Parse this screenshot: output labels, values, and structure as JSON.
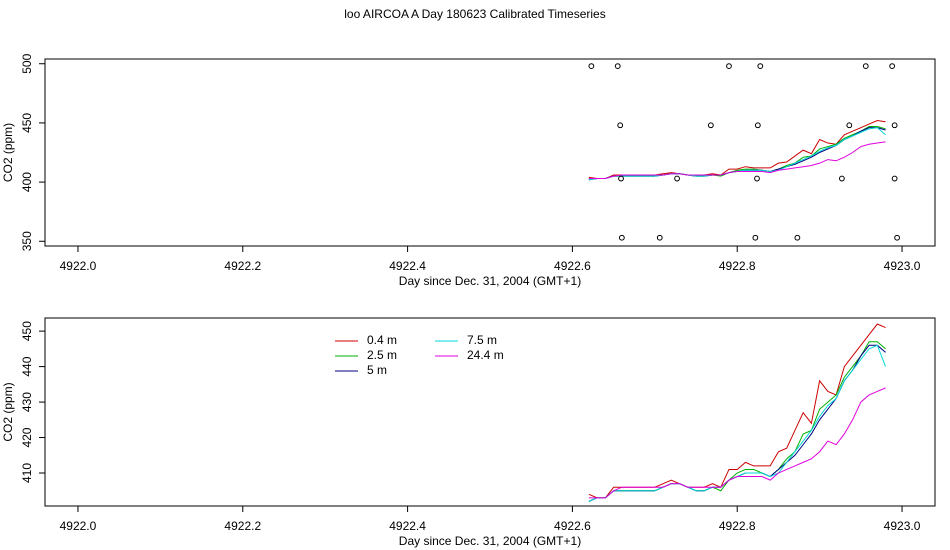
{
  "chart_data": [
    {
      "type": "line",
      "title": "loo AIRCOA A  Day 180623  Calibrated Timeseries",
      "xlabel": "Day since Dec. 31, 2004 (GMT+1)",
      "ylabel": "CO2 (ppm)",
      "xlim": [
        4921.96,
        4923.04
      ],
      "ylim": [
        346,
        504
      ],
      "xticks": [
        {
          "value": 4922.0,
          "label": "4922.0"
        },
        {
          "value": 4922.2,
          "label": "4922.2"
        },
        {
          "value": 4922.4,
          "label": "4922.4"
        },
        {
          "value": 4922.6,
          "label": "4922.6"
        },
        {
          "value": 4922.8,
          "label": "4922.8"
        },
        {
          "value": 4923.0,
          "label": "4923.0"
        }
      ],
      "yticks": [
        350,
        400,
        450,
        500
      ],
      "x": [
        4922.62,
        4922.63,
        4922.64,
        4922.65,
        4922.66,
        4922.67,
        4922.68,
        4922.69,
        4922.7,
        4922.71,
        4922.72,
        4922.73,
        4922.74,
        4922.75,
        4922.76,
        4922.77,
        4922.78,
        4922.79,
        4922.8,
        4922.81,
        4922.82,
        4922.83,
        4922.84,
        4922.85,
        4922.86,
        4922.87,
        4922.88,
        4922.89,
        4922.9,
        4922.91,
        4922.92,
        4922.93,
        4922.94,
        4922.95,
        4922.96,
        4922.97,
        4922.98
      ],
      "series": [
        {
          "name": "0.4 m",
          "color": "#cc0000",
          "values": [
            404,
            403,
            403,
            406,
            406,
            406,
            406,
            406,
            406,
            407,
            408,
            407,
            406,
            406,
            406,
            407,
            406,
            411,
            411,
            413,
            412,
            412,
            412,
            416,
            417,
            422,
            427,
            424,
            436,
            433,
            432,
            440,
            443,
            446,
            449,
            452,
            451
          ]
        },
        {
          "name": "2.5 m",
          "color": "#00b000",
          "values": [
            402,
            403,
            403,
            405,
            405,
            405,
            405,
            405,
            405,
            406,
            407,
            407,
            406,
            405,
            405,
            406,
            405,
            408,
            410,
            411,
            411,
            410,
            409,
            411,
            414,
            416,
            421,
            422,
            428,
            430,
            432,
            437,
            440,
            443,
            447,
            447,
            445
          ]
        },
        {
          "name": "5 m",
          "color": "#000080",
          "values": [
            402,
            403,
            403,
            405,
            405,
            405,
            405,
            405,
            405,
            406,
            407,
            407,
            406,
            405,
            405,
            406,
            406,
            408,
            409,
            410,
            410,
            410,
            409,
            411,
            413,
            415,
            418,
            421,
            425,
            428,
            431,
            436,
            439,
            443,
            446,
            446,
            444
          ]
        },
        {
          "name": "7.5 m",
          "color": "#00d8d8",
          "values": [
            402,
            403,
            403,
            405,
            405,
            405,
            405,
            405,
            405,
            406,
            407,
            407,
            406,
            405,
            405,
            406,
            406,
            408,
            409,
            410,
            410,
            410,
            409,
            410,
            413,
            416,
            419,
            422,
            426,
            429,
            431,
            436,
            439,
            442,
            445,
            446,
            440
          ]
        },
        {
          "name": "24.4 m",
          "color": "#e000e0",
          "values": [
            403,
            403,
            403,
            405,
            406,
            406,
            406,
            406,
            406,
            406,
            407,
            407,
            406,
            406,
            406,
            406,
            406,
            408,
            409,
            409,
            409,
            409,
            408,
            410,
            411,
            412,
            413,
            414,
            416,
            419,
            418,
            421,
            425,
            430,
            432,
            433,
            434
          ]
        }
      ],
      "markers": {
        "x": [
          4922.623,
          4922.655,
          4922.79,
          4922.828,
          4922.956,
          4922.988,
          4922.658,
          4922.768,
          4922.825,
          4922.936,
          4922.991,
          4922.659,
          4922.727,
          4922.824,
          4922.927,
          4922.991,
          4922.66,
          4922.706,
          4922.822,
          4922.873,
          4922.994
        ],
        "y": [
          498,
          498,
          498,
          498,
          498,
          498,
          448,
          448,
          448,
          448,
          448,
          403,
          403,
          403,
          403,
          403,
          353,
          353,
          353,
          353,
          353
        ]
      }
    },
    {
      "type": "line",
      "xlabel": "Day since Dec. 31, 2004 (GMT+1)",
      "ylabel": "CO2 (ppm)",
      "legend": true,
      "xlim": [
        4921.96,
        4923.04
      ],
      "ylim": [
        400.7,
        453.7
      ],
      "xticks": [
        {
          "value": 4922.0,
          "label": "4922.0"
        },
        {
          "value": 4922.2,
          "label": "4922.2"
        },
        {
          "value": 4922.4,
          "label": "4922.4"
        },
        {
          "value": 4922.6,
          "label": "4922.6"
        },
        {
          "value": 4922.8,
          "label": "4922.8"
        },
        {
          "value": 4923.0,
          "label": "4923.0"
        }
      ],
      "yticks": [
        410,
        420,
        430,
        440,
        450
      ],
      "x": [
        4922.62,
        4922.63,
        4922.64,
        4922.65,
        4922.66,
        4922.67,
        4922.68,
        4922.69,
        4922.7,
        4922.71,
        4922.72,
        4922.73,
        4922.74,
        4922.75,
        4922.76,
        4922.77,
        4922.78,
        4922.79,
        4922.8,
        4922.81,
        4922.82,
        4922.83,
        4922.84,
        4922.85,
        4922.86,
        4922.87,
        4922.88,
        4922.89,
        4922.9,
        4922.91,
        4922.92,
        4922.93,
        4922.94,
        4922.95,
        4922.96,
        4922.97,
        4922.98
      ],
      "series": [
        {
          "name": "0.4 m",
          "color": "#cc0000",
          "values": [
            404,
            403,
            403,
            406,
            406,
            406,
            406,
            406,
            406,
            407,
            408,
            407,
            406,
            406,
            406,
            407,
            406,
            411,
            411,
            413,
            412,
            412,
            412,
            416,
            417,
            422,
            427,
            424,
            436,
            433,
            432,
            440,
            443,
            446,
            449,
            452,
            451
          ]
        },
        {
          "name": "2.5 m",
          "color": "#00b000",
          "values": [
            402,
            403,
            403,
            405,
            405,
            405,
            405,
            405,
            405,
            406,
            407,
            407,
            406,
            405,
            405,
            406,
            405,
            408,
            410,
            411,
            411,
            410,
            409,
            411,
            414,
            416,
            421,
            422,
            428,
            430,
            432,
            437,
            440,
            443,
            447,
            447,
            445
          ]
        },
        {
          "name": "5 m",
          "color": "#000080",
          "values": [
            402,
            403,
            403,
            405,
            405,
            405,
            405,
            405,
            405,
            406,
            407,
            407,
            406,
            405,
            405,
            406,
            406,
            408,
            409,
            410,
            410,
            410,
            409,
            411,
            413,
            415,
            418,
            421,
            425,
            428,
            431,
            436,
            439,
            443,
            446,
            446,
            444
          ]
        },
        {
          "name": "7.5 m",
          "color": "#00d8d8",
          "values": [
            402,
            403,
            403,
            405,
            405,
            405,
            405,
            405,
            405,
            406,
            407,
            407,
            406,
            405,
            405,
            406,
            406,
            408,
            409,
            410,
            410,
            410,
            409,
            410,
            413,
            416,
            419,
            422,
            426,
            429,
            431,
            436,
            439,
            442,
            445,
            446,
            440
          ]
        },
        {
          "name": "24.4 m",
          "color": "#e000e0",
          "values": [
            403,
            403,
            403,
            405,
            406,
            406,
            406,
            406,
            406,
            406,
            407,
            407,
            406,
            406,
            406,
            406,
            406,
            408,
            409,
            409,
            409,
            409,
            408,
            410,
            411,
            412,
            413,
            414,
            416,
            419,
            418,
            421,
            425,
            430,
            432,
            433,
            434
          ]
        }
      ]
    }
  ]
}
